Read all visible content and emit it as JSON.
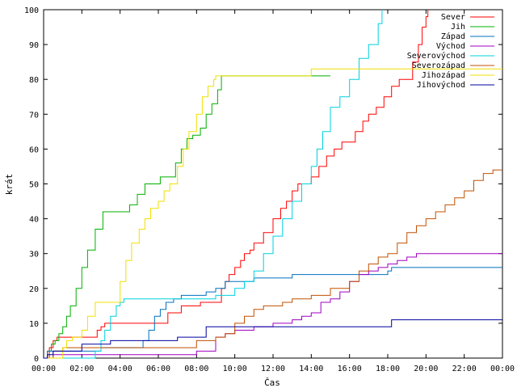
{
  "chart_data": {
    "type": "line",
    "title": "",
    "xlabel": "Čas",
    "ylabel": "krát",
    "xlim": [
      0,
      24
    ],
    "ylim": [
      0,
      100
    ],
    "x_ticks": [
      "00:00",
      "02:00",
      "04:00",
      "06:00",
      "08:00",
      "10:00",
      "12:00",
      "14:00",
      "16:00",
      "18:00",
      "20:00",
      "22:00",
      "00:00"
    ],
    "y_ticks": [
      "0",
      "10",
      "20",
      "30",
      "40",
      "50",
      "60",
      "70",
      "80",
      "90",
      "100"
    ],
    "grid": false,
    "legend_position": "top-right",
    "series": [
      {
        "name": "Sever",
        "color": "#ff0000",
        "x": [
          0,
          0.3,
          0.5,
          0.7,
          1.6,
          2.7,
          2.8,
          3.0,
          3.2,
          4.5,
          6.5,
          7.2,
          8.2,
          9.0,
          9.3,
          9.5,
          9.7,
          10.0,
          10.3,
          10.5,
          10.8,
          11.0,
          11.5,
          12.0,
          12.4,
          12.7,
          13.0,
          13.3,
          13.6,
          14.0,
          14.4,
          14.8,
          15.2,
          15.6,
          16.0,
          16.3,
          16.7,
          17.0,
          17.4,
          17.8,
          18.2,
          18.6,
          19.0,
          19.3,
          19.6,
          19.8,
          20.0,
          20.1
        ],
        "y": [
          0,
          3,
          5,
          6,
          6,
          6,
          8,
          9,
          10,
          10,
          13,
          15,
          16,
          16,
          20,
          22,
          24,
          26,
          28,
          30,
          31,
          33,
          36,
          40,
          43,
          45,
          48,
          50,
          50,
          52,
          55,
          58,
          60,
          62,
          62,
          65,
          68,
          70,
          72,
          75,
          78,
          80,
          80,
          85,
          90,
          95,
          98,
          100
        ]
      },
      {
        "name": "Jih",
        "color": "#00b000",
        "x": [
          0,
          0.2,
          0.4,
          0.6,
          0.8,
          1.0,
          1.2,
          1.4,
          1.7,
          2.0,
          2.3,
          2.7,
          3.1,
          3.5,
          4.0,
          4.5,
          4.9,
          5.3,
          5.7,
          6.1,
          6.5,
          6.9,
          7.2,
          7.5,
          7.8,
          8.2,
          8.5,
          8.8,
          9.1,
          9.3,
          13.8,
          15.0
        ],
        "y": [
          0,
          2,
          4,
          5,
          7,
          9,
          12,
          15,
          20,
          26,
          31,
          37,
          42,
          42,
          42,
          44,
          47,
          50,
          50,
          52,
          52,
          56,
          60,
          63,
          64,
          66,
          70,
          73,
          77,
          81,
          81,
          81
        ]
      },
      {
        "name": "Západ",
        "color": "#0070c0",
        "x": [
          0,
          0.2,
          0.5,
          2.5,
          3.0,
          4.0,
          4.8,
          5.2,
          5.5,
          5.8,
          6.1,
          6.4,
          6.8,
          7.2,
          7.6,
          8.0,
          8.5,
          9.0,
          9.5,
          10.0,
          11.0,
          12.0,
          13.0,
          14.0,
          15.0,
          16.0,
          17.0,
          18.0,
          18.2,
          24.0
        ],
        "y": [
          0,
          2,
          2,
          2,
          3,
          3,
          3,
          5,
          8,
          12,
          14,
          16,
          17,
          18,
          18,
          18,
          19,
          20,
          22,
          22,
          23,
          23,
          24,
          24,
          24,
          24,
          24,
          25,
          26,
          26
        ]
      },
      {
        "name": "Východ",
        "color": "#a000c0",
        "x": [
          0,
          0.5,
          1.0,
          4.0,
          8.0,
          9.0,
          9.5,
          10.0,
          11.0,
          12.0,
          12.5,
          13.0,
          13.5,
          14.0,
          14.5,
          15.0,
          15.5,
          16.0,
          16.5,
          17.0,
          17.5,
          18.0,
          18.5,
          19.0,
          19.5,
          24.0
        ],
        "y": [
          0,
          1,
          1,
          1,
          2,
          6,
          7,
          8,
          9,
          10,
          10,
          11,
          12,
          13,
          16,
          17,
          19,
          22,
          24,
          25,
          26,
          27,
          28,
          29,
          30,
          30
        ]
      },
      {
        "name": "Severovýchod",
        "color": "#00d0e0",
        "x": [
          0,
          2.7,
          3.0,
          3.2,
          3.5,
          3.8,
          4.0,
          4.2,
          4.5,
          4.8,
          5.0,
          5.2,
          5.5,
          6.0,
          7.0,
          8.0,
          9.0,
          10.0,
          10.5,
          11.0,
          11.5,
          12.0,
          12.5,
          13.0,
          13.5,
          14.0,
          14.3,
          14.6,
          15.0,
          15.5,
          16.0,
          16.5,
          17.0,
          17.5,
          17.7
        ],
        "y": [
          0,
          2,
          5,
          8,
          12,
          15,
          16,
          17,
          17,
          17,
          17,
          17,
          17,
          17,
          17,
          17,
          18,
          20,
          22,
          25,
          30,
          35,
          40,
          45,
          50,
          55,
          60,
          65,
          72,
          75,
          80,
          86,
          90,
          96,
          100
        ]
      },
      {
        "name": "Severozápad",
        "color": "#c05000",
        "x": [
          0,
          0.5,
          1.0,
          3.0,
          6.0,
          8.0,
          9.0,
          9.5,
          10.0,
          10.5,
          11.0,
          11.5,
          12.0,
          12.5,
          13.0,
          14.0,
          15.0,
          16.0,
          16.5,
          17.0,
          17.5,
          18.0,
          18.5,
          19.0,
          19.5,
          20.0,
          20.5,
          21.0,
          21.5,
          22.0,
          22.5,
          23.0,
          23.5,
          24.0
        ],
        "y": [
          0,
          2,
          3,
          3,
          3,
          5,
          6,
          7,
          10,
          12,
          14,
          15,
          15,
          16,
          17,
          18,
          20,
          22,
          25,
          27,
          29,
          30,
          33,
          36,
          38,
          40,
          42,
          44,
          46,
          48,
          51,
          53,
          54,
          54
        ]
      },
      {
        "name": "Jihozápad",
        "color": "#f0e000",
        "x": [
          0,
          1.0,
          1.2,
          1.5,
          2.0,
          2.3,
          2.7,
          3.0,
          3.5,
          4.0,
          4.3,
          4.6,
          5.0,
          5.3,
          5.6,
          6.0,
          6.3,
          6.6,
          7.0,
          7.3,
          7.6,
          8.0,
          8.3,
          8.6,
          8.9,
          9.0,
          10.0,
          13.8,
          14.0,
          24.0
        ],
        "y": [
          0,
          3,
          5,
          6,
          8,
          12,
          16,
          16,
          16,
          22,
          28,
          33,
          37,
          40,
          43,
          45,
          48,
          50,
          55,
          60,
          65,
          70,
          75,
          78,
          80,
          81,
          81,
          81,
          83,
          83
        ]
      },
      {
        "name": "Jihovýchod",
        "color": "#0000a0",
        "x": [
          0,
          0.2,
          0.5,
          2.0,
          3.5,
          6.0,
          7.0,
          8.0,
          8.5,
          10.0,
          12.0,
          14.0,
          16.0,
          18.0,
          18.2,
          24.0
        ],
        "y": [
          0,
          1,
          2,
          4,
          5,
          5,
          6,
          6,
          9,
          9,
          9,
          9,
          9,
          9,
          11,
          11
        ]
      }
    ]
  }
}
